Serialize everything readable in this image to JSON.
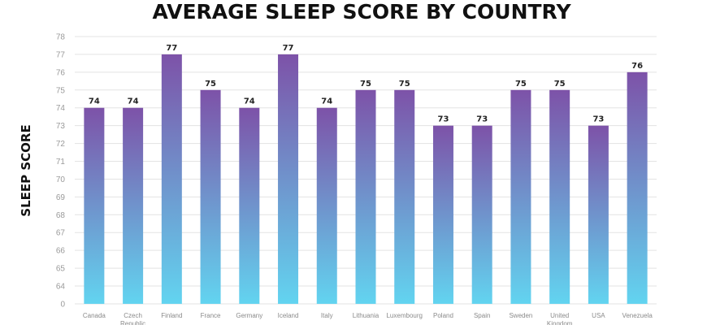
{
  "chart_data": {
    "type": "bar",
    "title": "AVERAGE SLEEP SCORE BY COUNTRY",
    "xlabel": "",
    "ylabel": "SLEEP SCORE",
    "y_ticks": [
      "0",
      "64",
      "65",
      "66",
      "67",
      "68",
      "69",
      "70",
      "71",
      "72",
      "73",
      "74",
      "75",
      "76",
      "77",
      "78"
    ],
    "axis_break": "0 then 64 to 78",
    "grid": true,
    "legend": "none",
    "categories": [
      "Canada",
      "Czech Republic",
      "Finland",
      "France",
      "Germany",
      "Iceland",
      "Italy",
      "Lithuania",
      "Luxembourg",
      "Poland",
      "Spain",
      "Sweden",
      "United Kingdom",
      "USA",
      "Venezuela"
    ],
    "values": [
      74,
      74,
      77,
      75,
      74,
      77,
      74,
      75,
      75,
      73,
      73,
      75,
      75,
      73,
      76
    ],
    "colors": {
      "bar_top": "#7d52a8",
      "bar_bottom": "#62d4f0",
      "grid": "#e3e3e3"
    }
  }
}
